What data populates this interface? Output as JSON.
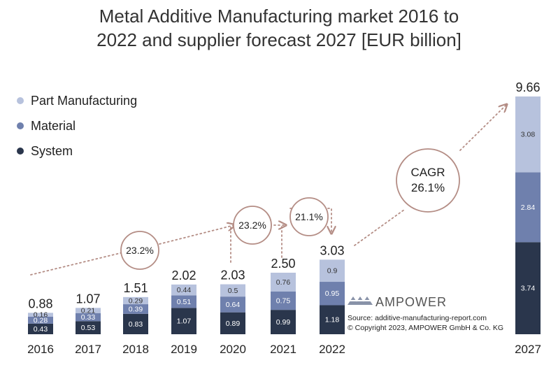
{
  "title_line1": "Metal Additive Manufacturing market 2016 to",
  "title_line2": "2022 and supplier forecast 2027 [EUR billion]",
  "legend": [
    {
      "label": "Part Manufacturing",
      "color": "#b7c2dd"
    },
    {
      "label": "Material",
      "color": "#6f80ad"
    },
    {
      "label": "System",
      "color": "#2a364c"
    }
  ],
  "chart_data": {
    "type": "bar",
    "stacked": true,
    "categories": [
      "2016",
      "2017",
      "2018",
      "2019",
      "2020",
      "2021",
      "2022",
      "2027"
    ],
    "series": [
      {
        "name": "System",
        "color": "#2a364c",
        "values": [
          0.43,
          0.53,
          0.83,
          1.07,
          0.89,
          0.99,
          1.18,
          3.74
        ]
      },
      {
        "name": "Material",
        "color": "#6f80ad",
        "values": [
          0.28,
          0.33,
          0.39,
          0.51,
          0.64,
          0.75,
          0.95,
          2.84
        ]
      },
      {
        "name": "Part Manufacturing",
        "color": "#b7c2dd",
        "values": [
          0.16,
          0.21,
          0.29,
          0.44,
          0.5,
          0.76,
          0.9,
          3.08
        ]
      }
    ],
    "totals": [
      "0.88",
      "1.07",
      "1.51",
      "2.02",
      "2.03",
      "2.50",
      "3.03",
      "9.66"
    ],
    "annotations": [
      {
        "text": "23.2%"
      },
      {
        "text": "23.2%"
      },
      {
        "text": "21.1%"
      },
      {
        "text": "CAGR\n26.1%"
      }
    ],
    "ylim": [
      0,
      10
    ],
    "grid": false
  },
  "logo_text": "AMPOWER",
  "source_line1": "Source: additive-manufacturing-report.com",
  "source_line2": "© Copyright 2023, AMPOWER GmbH & Co. KG"
}
